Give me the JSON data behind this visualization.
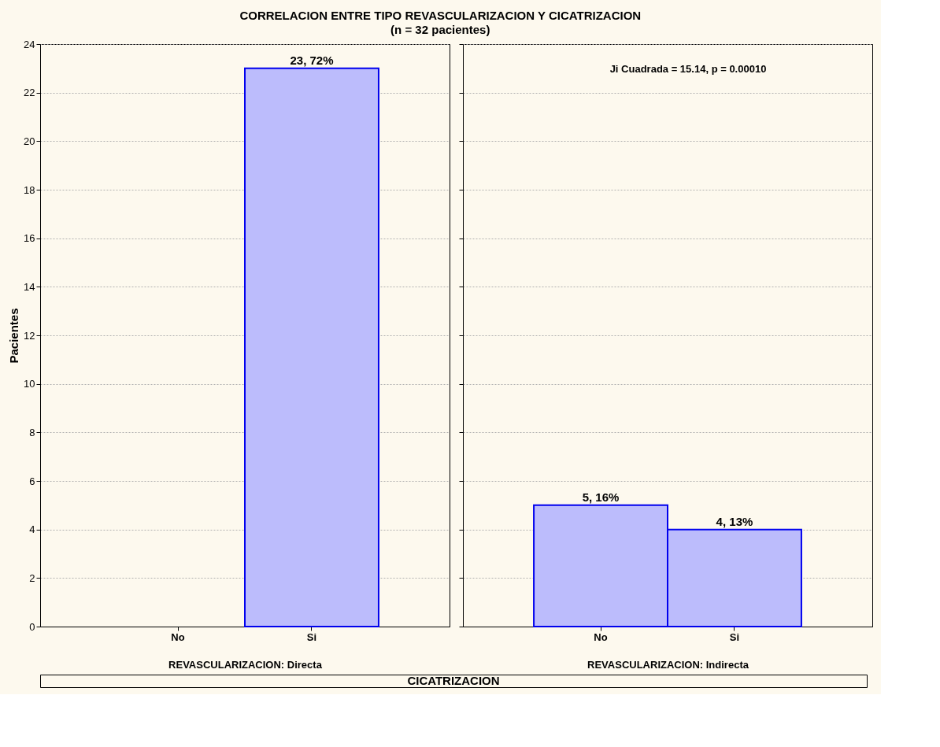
{
  "chart_data": [
    {
      "type": "bar",
      "title": "CORRELACION ENTRE TIPO REVASCULARIZACION Y CICATRIZACION",
      "subtitle": "(n = 32 pacientes)",
      "ylabel": "Pacientes",
      "xlabel": "REVASCULARIZACION: Directa",
      "annotations": [
        "CICATRIZACION"
      ],
      "categories": [
        "No",
        "Si"
      ],
      "values": [
        null,
        23
      ],
      "value_labels": [
        null,
        "23, 72%"
      ],
      "color": "#bcbcfc",
      "ylim": [
        0,
        24
      ],
      "yticks": [
        0,
        2,
        4,
        6,
        8,
        10,
        12,
        14,
        16,
        18,
        20,
        22,
        24
      ],
      "grid": "y"
    },
    {
      "type": "bar",
      "xlabel": "REVASCULARIZACION: Indirecta",
      "annotations": [
        "Ji Cuadrada = 15.14, p = 0.00010"
      ],
      "categories": [
        "No",
        "Si"
      ],
      "values": [
        5,
        4
      ],
      "value_labels": [
        "5, 16%",
        "4, 13%"
      ],
      "color": "#bcbcfc",
      "ylim": [
        0,
        24
      ],
      "yticks": [
        0,
        2,
        4,
        6,
        8,
        10,
        12,
        14,
        16,
        18,
        20,
        22,
        24
      ],
      "grid": "y",
      "tick_labels": "x"
    }
  ]
}
